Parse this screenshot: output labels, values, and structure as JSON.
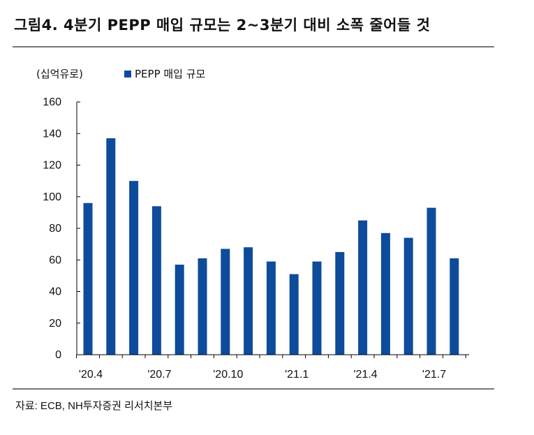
{
  "header": {
    "title": "그림4. 4분기 PEPP 매입 규모는 2~3분기 대비 소폭 줄어들 것"
  },
  "footer": {
    "source": "자료: ECB, NH투자증권 리서치본부"
  },
  "colors": {
    "bar": "#0d4c9b",
    "axis": "#000000",
    "rule": "#777777"
  },
  "chart_data": {
    "type": "bar",
    "unit_label": "(십억유로)",
    "legend": [
      "PEPP 매입 규모"
    ],
    "x_tick_labels": [
      "'20.4",
      "'20.7",
      "'20.10",
      "'21.1",
      "'21.4",
      "'21.7"
    ],
    "x_tick_every": 3,
    "ylim": [
      0,
      160
    ],
    "y_ticks": [
      0,
      20,
      40,
      60,
      80,
      100,
      120,
      140,
      160
    ],
    "grid": false,
    "series": [
      {
        "name": "PEPP 매입 규모",
        "values": [
          96,
          137,
          110,
          94,
          57,
          61,
          67,
          68,
          59,
          51,
          59,
          65,
          85,
          77,
          74,
          93,
          61
        ]
      }
    ]
  }
}
